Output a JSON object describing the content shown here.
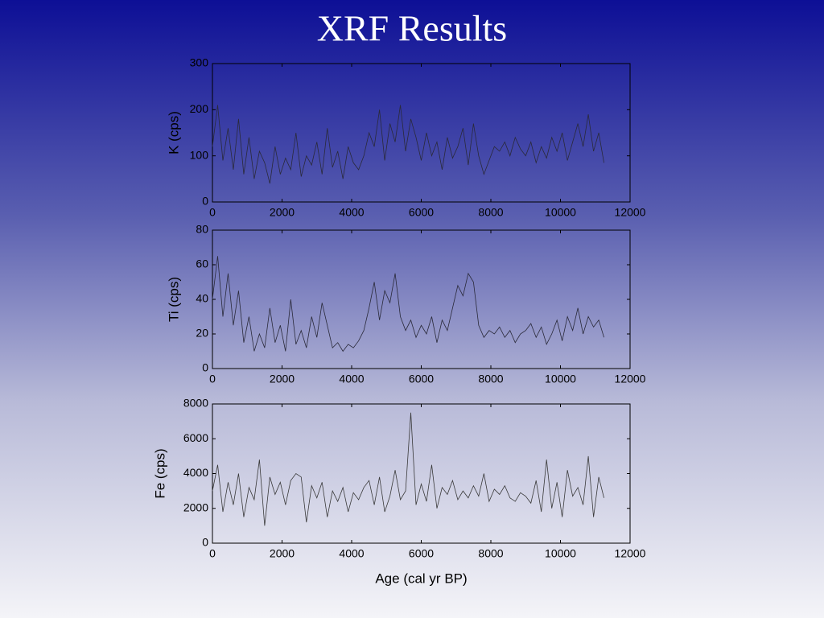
{
  "title": "XRF Results",
  "chart_data": [
    {
      "type": "line",
      "ylabel": "K (cps)",
      "x": [
        0,
        150,
        300,
        450,
        600,
        750,
        900,
        1050,
        1200,
        1350,
        1500,
        1650,
        1800,
        1950,
        2100,
        2250,
        2400,
        2550,
        2700,
        2850,
        3000,
        3150,
        3300,
        3450,
        3600,
        3750,
        3900,
        4050,
        4200,
        4350,
        4500,
        4650,
        4800,
        4950,
        5100,
        5250,
        5400,
        5550,
        5700,
        5850,
        6000,
        6150,
        6300,
        6450,
        6600,
        6750,
        6900,
        7050,
        7200,
        7350,
        7500,
        7650,
        7800,
        7950,
        8100,
        8250,
        8400,
        8550,
        8700,
        8850,
        9000,
        9150,
        9300,
        9450,
        9600,
        9750,
        9900,
        10050,
        10200,
        10350,
        10500,
        10650,
        10800,
        10950,
        11100,
        11250
      ],
      "series": [
        {
          "color": "#2a2a3a",
          "values": [
            120,
            210,
            90,
            160,
            70,
            180,
            60,
            140,
            50,
            110,
            85,
            40,
            120,
            60,
            95,
            70,
            150,
            55,
            100,
            80,
            130,
            60,
            160,
            75,
            110,
            50,
            120,
            85,
            70,
            100,
            150,
            120,
            200,
            90,
            170,
            130,
            210,
            110,
            180,
            140,
            90,
            150,
            100,
            130,
            70,
            140,
            95,
            120,
            160,
            80,
            170,
            100,
            60,
            90,
            120,
            110,
            130,
            100,
            140,
            115,
            100,
            130,
            85,
            120,
            95,
            140,
            110,
            150,
            90,
            130,
            170,
            120,
            190,
            110,
            150,
            85
          ]
        }
      ],
      "xlim": [
        0,
        12000
      ],
      "ylim": [
        0,
        300
      ],
      "xticks": [
        0,
        2000,
        4000,
        6000,
        8000,
        10000,
        12000
      ],
      "yticks": [
        0,
        100,
        200,
        300
      ]
    },
    {
      "type": "line",
      "ylabel": "Ti (cps)",
      "x": [
        0,
        150,
        300,
        450,
        600,
        750,
        900,
        1050,
        1200,
        1350,
        1500,
        1650,
        1800,
        1950,
        2100,
        2250,
        2400,
        2550,
        2700,
        2850,
        3000,
        3150,
        3300,
        3450,
        3600,
        3750,
        3900,
        4050,
        4200,
        4350,
        4500,
        4650,
        4800,
        4950,
        5100,
        5250,
        5400,
        5550,
        5700,
        5850,
        6000,
        6150,
        6300,
        6450,
        6600,
        6750,
        6900,
        7050,
        7200,
        7350,
        7500,
        7650,
        7800,
        7950,
        8100,
        8250,
        8400,
        8550,
        8700,
        8850,
        9000,
        9150,
        9300,
        9450,
        9600,
        9750,
        9900,
        10050,
        10200,
        10350,
        10500,
        10650,
        10800,
        10950,
        11100,
        11250
      ],
      "series": [
        {
          "color": "#2a2a3a",
          "values": [
            40,
            65,
            30,
            55,
            25,
            45,
            15,
            30,
            10,
            20,
            12,
            35,
            15,
            25,
            10,
            40,
            14,
            22,
            12,
            30,
            18,
            38,
            25,
            12,
            15,
            10,
            14,
            12,
            16,
            22,
            35,
            50,
            28,
            45,
            38,
            55,
            30,
            22,
            28,
            18,
            25,
            20,
            30,
            15,
            28,
            22,
            35,
            48,
            42,
            55,
            50,
            25,
            18,
            22,
            20,
            24,
            18,
            22,
            15,
            20,
            22,
            26,
            18,
            24,
            14,
            20,
            28,
            16,
            30,
            22,
            35,
            20,
            30,
            24,
            28,
            18
          ]
        }
      ],
      "xlim": [
        0,
        12000
      ],
      "ylim": [
        0,
        80
      ],
      "xticks": [
        0,
        2000,
        4000,
        6000,
        8000,
        10000,
        12000
      ],
      "yticks": [
        0,
        20,
        40,
        60,
        80
      ]
    },
    {
      "type": "line",
      "ylabel": "Fe (cps)",
      "xlabel": "Age (cal yr BP)",
      "x": [
        0,
        150,
        300,
        450,
        600,
        750,
        900,
        1050,
        1200,
        1350,
        1500,
        1650,
        1800,
        1950,
        2100,
        2250,
        2400,
        2550,
        2700,
        2850,
        3000,
        3150,
        3300,
        3450,
        3600,
        3750,
        3900,
        4050,
        4200,
        4350,
        4500,
        4650,
        4800,
        4950,
        5100,
        5250,
        5400,
        5550,
        5700,
        5850,
        6000,
        6150,
        6300,
        6450,
        6600,
        6750,
        6900,
        7050,
        7200,
        7350,
        7500,
        7650,
        7800,
        7950,
        8100,
        8250,
        8400,
        8550,
        8700,
        8850,
        9000,
        9150,
        9300,
        9450,
        9600,
        9750,
        9900,
        10050,
        10200,
        10350,
        10500,
        10650,
        10800,
        10950,
        11100,
        11250
      ],
      "series": [
        {
          "color": "#3a3a3a",
          "values": [
            3000,
            4500,
            1800,
            3500,
            2200,
            4000,
            1500,
            3200,
            2500,
            4800,
            1000,
            3800,
            2800,
            3500,
            2200,
            3600,
            4000,
            3800,
            1200,
            3300,
            2600,
            3500,
            1500,
            3000,
            2400,
            3200,
            1800,
            2900,
            2500,
            3200,
            3600,
            2200,
            3800,
            1800,
            2700,
            4200,
            2500,
            3000,
            7500,
            2200,
            3400,
            2400,
            4500,
            2000,
            3200,
            2800,
            3600,
            2500,
            3000,
            2600,
            3300,
            2700,
            4000,
            2400,
            3100,
            2800,
            3300,
            2600,
            2400,
            2900,
            2700,
            2300,
            3600,
            1800,
            4800,
            2000,
            3500,
            1500,
            4200,
            2700,
            3200,
            2200,
            5000,
            1500,
            3800,
            2600
          ]
        }
      ],
      "xlim": [
        0,
        12000
      ],
      "ylim": [
        0,
        8000
      ],
      "xticks": [
        0,
        2000,
        4000,
        6000,
        8000,
        10000,
        12000
      ],
      "yticks": [
        0,
        2000,
        4000,
        6000,
        8000
      ]
    }
  ]
}
